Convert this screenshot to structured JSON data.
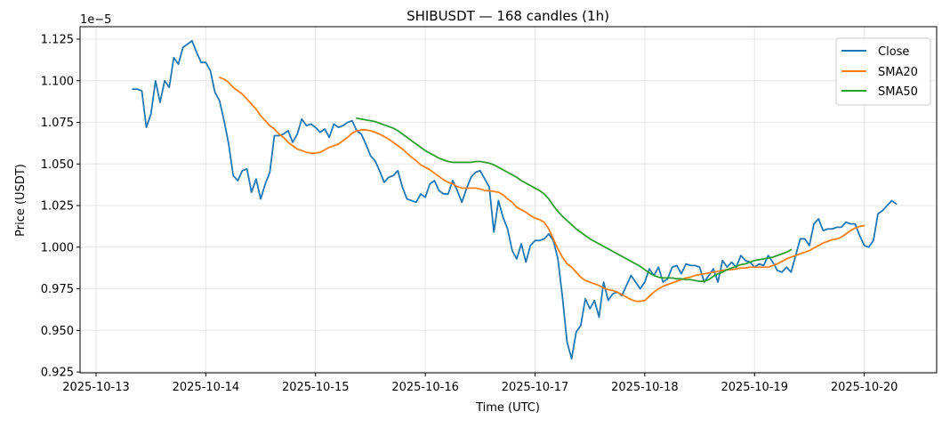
{
  "chart_data": {
    "type": "line",
    "title": "SHIBUSDT — 168 candles (1h)",
    "xlabel": "Time (UTC)",
    "ylabel": "Price (USDT)",
    "y_offset_label": "1e−5",
    "y_scale_note": "values in units of 1e-5 USDT",
    "x_ticks": [
      "2025-10-13",
      "2025-10-14",
      "2025-10-15",
      "2025-10-16",
      "2025-10-17",
      "2025-10-18",
      "2025-10-19",
      "2025-10-20"
    ],
    "y_ticks": [
      "0.925",
      "0.950",
      "0.975",
      "1.000",
      "1.025",
      "1.050",
      "1.075",
      "1.100",
      "1.125"
    ],
    "xlim": [
      "2025-10-12T20:30",
      "2025-10-20T15:50"
    ],
    "ylim": [
      0.9245,
      1.1325
    ],
    "grid": true,
    "legend_position": "top-right",
    "start": "2025-10-13T08:00",
    "interval_hours": 1,
    "series": [
      {
        "name": "Close",
        "color": "#1f77b4",
        "offset": 0,
        "values": [
          1.095,
          1.095,
          1.094,
          1.072,
          1.08,
          1.1,
          1.087,
          1.1,
          1.096,
          1.114,
          1.11,
          1.12,
          1.122,
          1.124,
          1.117,
          1.111,
          1.111,
          1.106,
          1.093,
          1.088,
          1.076,
          1.062,
          1.043,
          1.04,
          1.046,
          1.047,
          1.033,
          1.041,
          1.029,
          1.038,
          1.045,
          1.067,
          1.067,
          1.068,
          1.07,
          1.063,
          1.068,
          1.077,
          1.073,
          1.074,
          1.072,
          1.069,
          1.071,
          1.066,
          1.074,
          1.072,
          1.073,
          1.075,
          1.076,
          1.07,
          1.068,
          1.062,
          1.055,
          1.052,
          1.046,
          1.039,
          1.042,
          1.043,
          1.046,
          1.036,
          1.029,
          1.028,
          1.027,
          1.032,
          1.03,
          1.038,
          1.04,
          1.034,
          1.032,
          1.032,
          1.04,
          1.034,
          1.027,
          1.035,
          1.042,
          1.045,
          1.046,
          1.041,
          1.036,
          1.009,
          1.028,
          1.018,
          1.011,
          0.998,
          0.993,
          1.002,
          0.991,
          1.001,
          1.004,
          1.004,
          1.005,
          1.008,
          1.004,
          0.993,
          0.97,
          0.943,
          0.933,
          0.949,
          0.953,
          0.969,
          0.963,
          0.968,
          0.958,
          0.979,
          0.968,
          0.972,
          0.973,
          0.971,
          0.977,
          0.983,
          0.979,
          0.975,
          0.979,
          0.987,
          0.983,
          0.988,
          0.979,
          0.981,
          0.988,
          0.989,
          0.984,
          0.99,
          0.989,
          0.989,
          0.988,
          0.979,
          0.983,
          0.987,
          0.979,
          0.992,
          0.988,
          0.991,
          0.988,
          0.995,
          0.992,
          0.991,
          0.988,
          0.99,
          0.989,
          0.995,
          0.991,
          0.986,
          0.985,
          0.988,
          0.985,
          0.995,
          1.005,
          1.005,
          1.001,
          1.014,
          1.017,
          1.01,
          1.011,
          1.011,
          1.012,
          1.012,
          1.015,
          1.014,
          1.014,
          1.007,
          1.001,
          1.0,
          1.004,
          1.02,
          1.022,
          1.025,
          1.028,
          1.026
        ]
      },
      {
        "name": "SMA20",
        "color": "#ff7f0e",
        "offset": 19,
        "values": [
          1.102,
          1.101,
          1.099,
          1.096,
          1.094,
          1.092,
          1.089,
          1.086,
          1.083,
          1.079,
          1.076,
          1.073,
          1.071,
          1.068,
          1.066,
          1.063,
          1.061,
          1.059,
          1.058,
          1.057,
          1.0565,
          1.0565,
          1.057,
          1.0585,
          1.06,
          1.061,
          1.062,
          1.064,
          1.066,
          1.0685,
          1.07,
          1.0705,
          1.0705,
          1.07,
          1.069,
          1.068,
          1.0665,
          1.065,
          1.063,
          1.061,
          1.059,
          1.0565,
          1.054,
          1.052,
          1.0495,
          1.048,
          1.0465,
          1.0445,
          1.0425,
          1.0405,
          1.039,
          1.038,
          1.0365,
          1.0355,
          1.0355,
          1.0355,
          1.0355,
          1.035,
          1.034,
          1.034,
          1.0335,
          1.033,
          1.0315,
          1.029,
          1.027,
          1.024,
          1.0225,
          1.021,
          1.019,
          1.0175,
          1.0165,
          1.015,
          1.011,
          1.005,
          0.999,
          0.994,
          0.99,
          0.988,
          0.985,
          0.982,
          0.98,
          0.979,
          0.978,
          0.977,
          0.9755,
          0.9745,
          0.974,
          0.973,
          0.9715,
          0.97,
          0.9685,
          0.9675,
          0.9675,
          0.968,
          0.9705,
          0.973,
          0.975,
          0.9765,
          0.9775,
          0.9785,
          0.9795,
          0.9805,
          0.9815,
          0.982,
          0.983,
          0.9835,
          0.984,
          0.9845,
          0.985,
          0.9855,
          0.986,
          0.9865,
          0.9865,
          0.987,
          0.9875,
          0.9875,
          0.988,
          0.988,
          0.988,
          0.988,
          0.988,
          0.989,
          0.99,
          0.9915,
          0.993,
          0.994,
          0.995,
          0.996,
          0.997,
          0.998,
          0.9995,
          1.001,
          1.0025,
          1.0035,
          1.0045,
          1.005,
          1.006,
          1.008,
          1.01,
          1.0115,
          1.0125,
          1.013
        ]
      },
      {
        "name": "SMA50",
        "color": "#2ca02c",
        "offset": 49,
        "values": [
          1.0775,
          1.077,
          1.0765,
          1.076,
          1.0755,
          1.0745,
          1.0735,
          1.0725,
          1.0715,
          1.07,
          1.068,
          1.066,
          1.064,
          1.062,
          1.06,
          1.058,
          1.0565,
          1.055,
          1.0535,
          1.0525,
          1.0515,
          1.051,
          1.051,
          1.051,
          1.051,
          1.051,
          1.0515,
          1.0515,
          1.051,
          1.0505,
          1.0495,
          1.048,
          1.0465,
          1.045,
          1.0435,
          1.042,
          1.04,
          1.0385,
          1.037,
          1.0355,
          1.034,
          1.032,
          1.029,
          1.025,
          1.0215,
          1.0185,
          1.016,
          1.0135,
          1.011,
          1.009,
          1.007,
          1.005,
          1.0035,
          1.002,
          1.0005,
          0.999,
          0.9975,
          0.996,
          0.9945,
          0.993,
          0.9915,
          0.99,
          0.9885,
          0.9865,
          0.9845,
          0.983,
          0.982,
          0.9815,
          0.9815,
          0.9815,
          0.981,
          0.981,
          0.9805,
          0.9805,
          0.98,
          0.9795,
          0.9795,
          0.9805,
          0.9825,
          0.984,
          0.985,
          0.9865,
          0.9875,
          0.9885,
          0.9895,
          0.99,
          0.991,
          0.992,
          0.9925,
          0.993,
          0.9935,
          0.994,
          0.995,
          0.996,
          0.997,
          0.9985
        ]
      }
    ]
  }
}
